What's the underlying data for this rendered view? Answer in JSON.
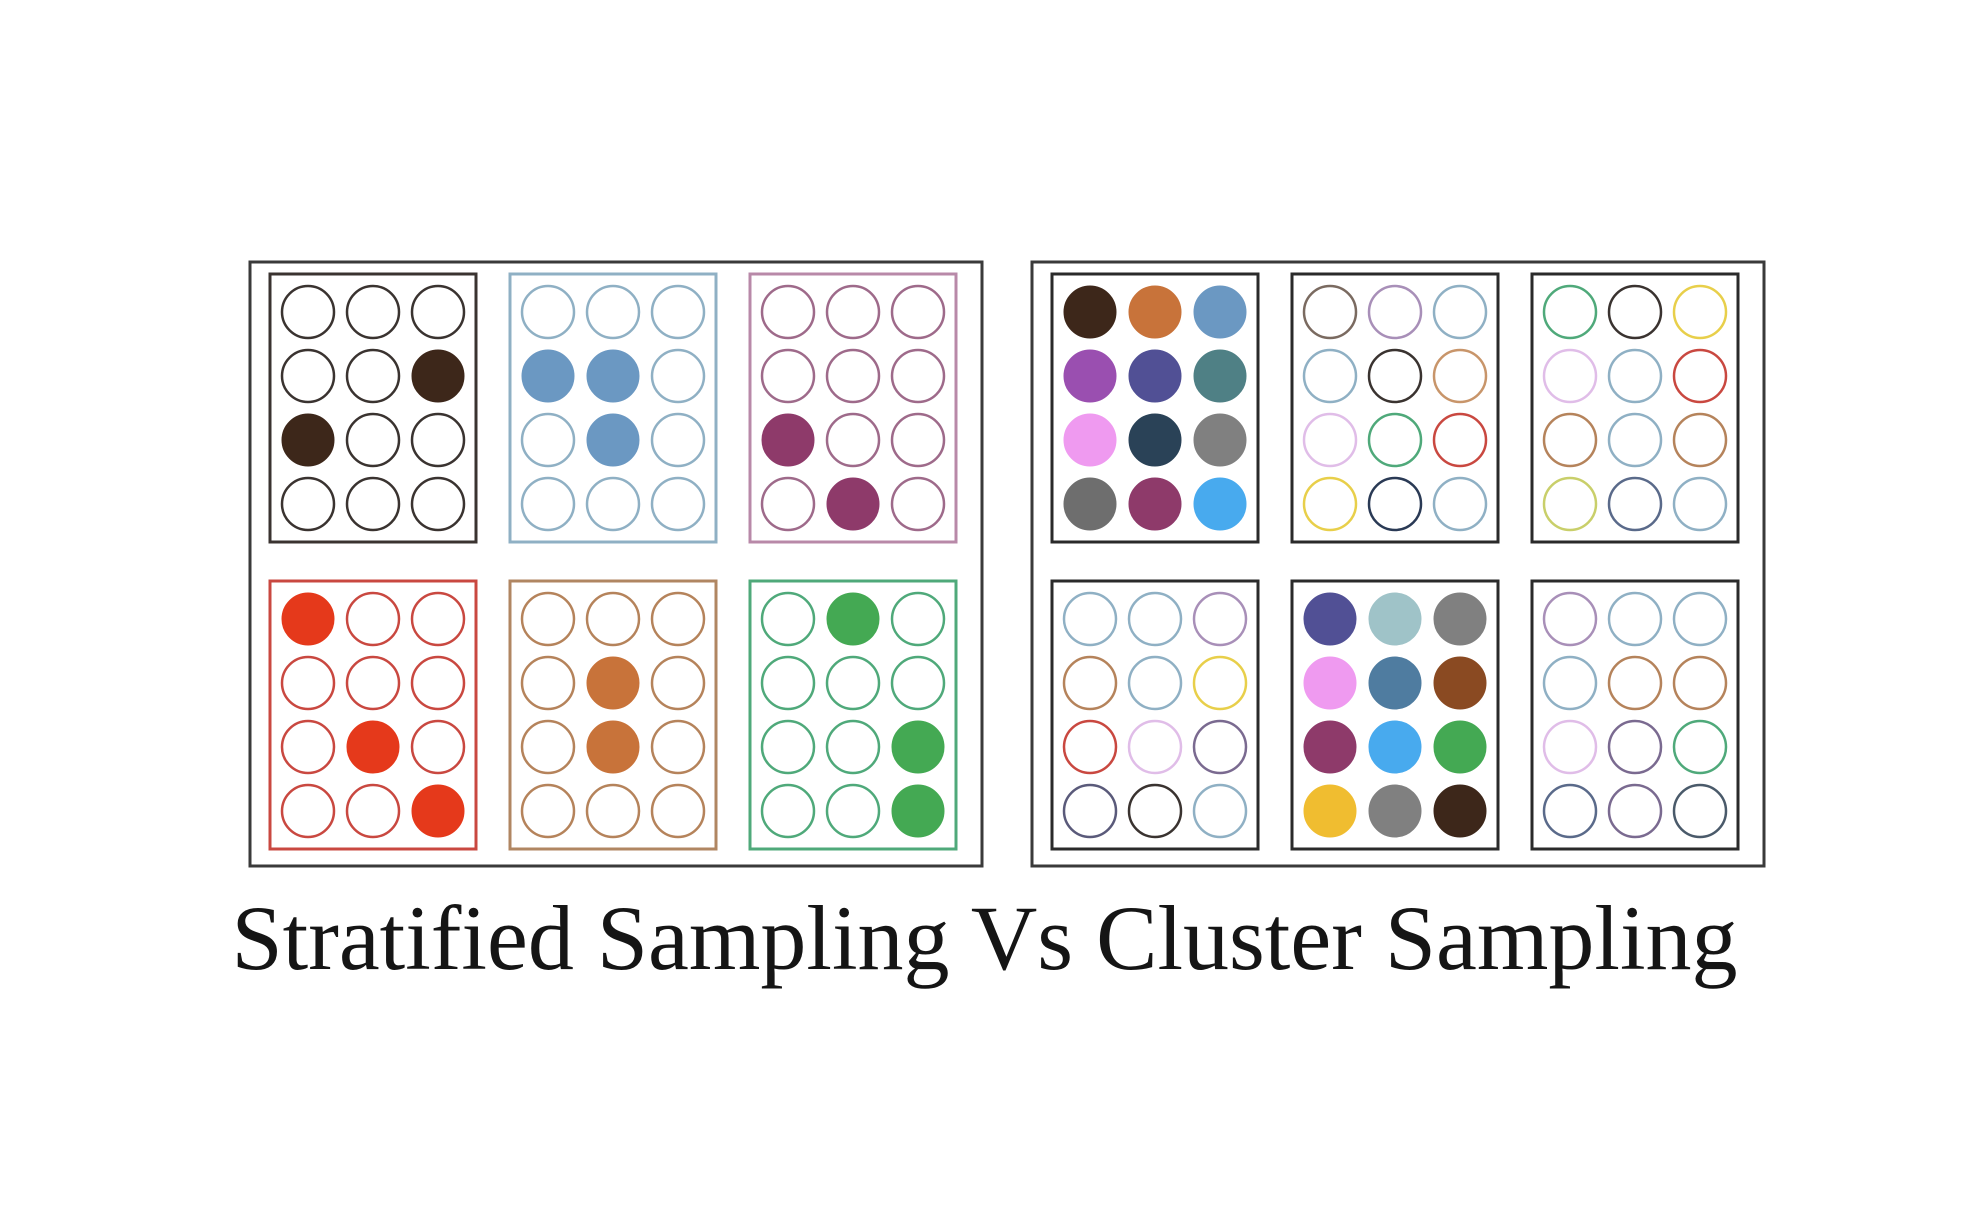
{
  "caption": "Stratified Sampling Vs Cluster Sampling",
  "stratified": {
    "groups": [
      {
        "border": "#3a3330",
        "rings": [
          "#3a3330"
        ],
        "filled": {
          "5": "#3d271a",
          "6": "#3d271a"
        }
      },
      {
        "border": "#8fb0c4",
        "rings": [
          "#8fb0c4"
        ],
        "filled": {
          "3": "#6b98c2",
          "4": "#6b98c2",
          "7": "#6b98c2"
        }
      },
      {
        "border": "#b889a8",
        "rings": [
          "#9e6a8a"
        ],
        "filled": {
          "6": "#8e3a6a",
          "10": "#8e3a6a"
        }
      },
      {
        "border": "#c94840",
        "rings": [
          "#c94840"
        ],
        "filled": {
          "0": "#e5391b",
          "7": "#e5391b",
          "11": "#e5391b"
        }
      },
      {
        "border": "#b08662",
        "rings": [
          "#b5835b"
        ],
        "filled": {
          "4": "#c8733a",
          "7": "#c8733a"
        }
      },
      {
        "border": "#4fa97a",
        "rings": [
          "#4fa97a"
        ],
        "filled": {
          "1": "#44a953",
          "8": "#44a953",
          "11": "#44a953"
        }
      }
    ]
  },
  "cluster": {
    "groups": [
      {
        "border": "#2a2a2a",
        "rings": [
          "#444444"
        ],
        "filled": {
          "0": "#3d271a",
          "1": "#c8733a",
          "2": "#6b98c2",
          "3": "#9a4fb0",
          "4": "#515095",
          "5": "#4f8085",
          "6": "#ef9af0",
          "7": "#2a4257",
          "8": "#808080",
          "9": "#6e6e6e",
          "10": "#8e3a6a",
          "11": "#48aaee"
        }
      },
      {
        "border": "#2a2a2a",
        "rings": [
          "#7a6a60",
          "#a88fb8",
          "#8fb0c4",
          "#8fb0c4",
          "#3a3330",
          "#c8956a",
          "#e0bde8",
          "#4fa97a",
          "#c94840",
          "#e8cf4a",
          "#2a3a55",
          "#8fb0c4"
        ],
        "filled": {}
      },
      {
        "border": "#2a2a2a",
        "rings": [
          "#4fa97a",
          "#3a3330",
          "#e8cf4a",
          "#e0bde8",
          "#8fb0c4",
          "#c94840",
          "#b5835b",
          "#8fb0c4",
          "#b5835b",
          "#c9cf6a",
          "#5a6a8a",
          "#8fb0c4"
        ],
        "filled": {}
      },
      {
        "border": "#2a2a2a",
        "rings": [
          "#8fb0c4",
          "#8fb0c4",
          "#a88fb8",
          "#b5835b",
          "#8fb0c4",
          "#e8cf4a",
          "#c94840",
          "#e0bde8",
          "#7a6a90",
          "#5a5a7a",
          "#3a3330",
          "#8fb0c4"
        ],
        "filled": {}
      },
      {
        "border": "#2a2a2a",
        "rings": [
          "#444444"
        ],
        "filled": {
          "0": "#515095",
          "1": "#9fc3c8",
          "2": "#808080",
          "3": "#ef9af0",
          "4": "#4f7ca0",
          "5": "#8a4a22",
          "6": "#8e3a6a",
          "7": "#48aaee",
          "8": "#44a953",
          "9": "#f0bd30",
          "10": "#808080",
          "11": "#3d271a"
        }
      },
      {
        "border": "#2a2a2a",
        "rings": [
          "#a88fb8",
          "#8fb0c4",
          "#8fb0c4",
          "#8fb0c4",
          "#b5835b",
          "#b5835b",
          "#e0bde8",
          "#7a6a90",
          "#4fa97a",
          "#5a6a8a",
          "#7a6a90",
          "#4a5a6a"
        ],
        "filled": {}
      }
    ]
  }
}
